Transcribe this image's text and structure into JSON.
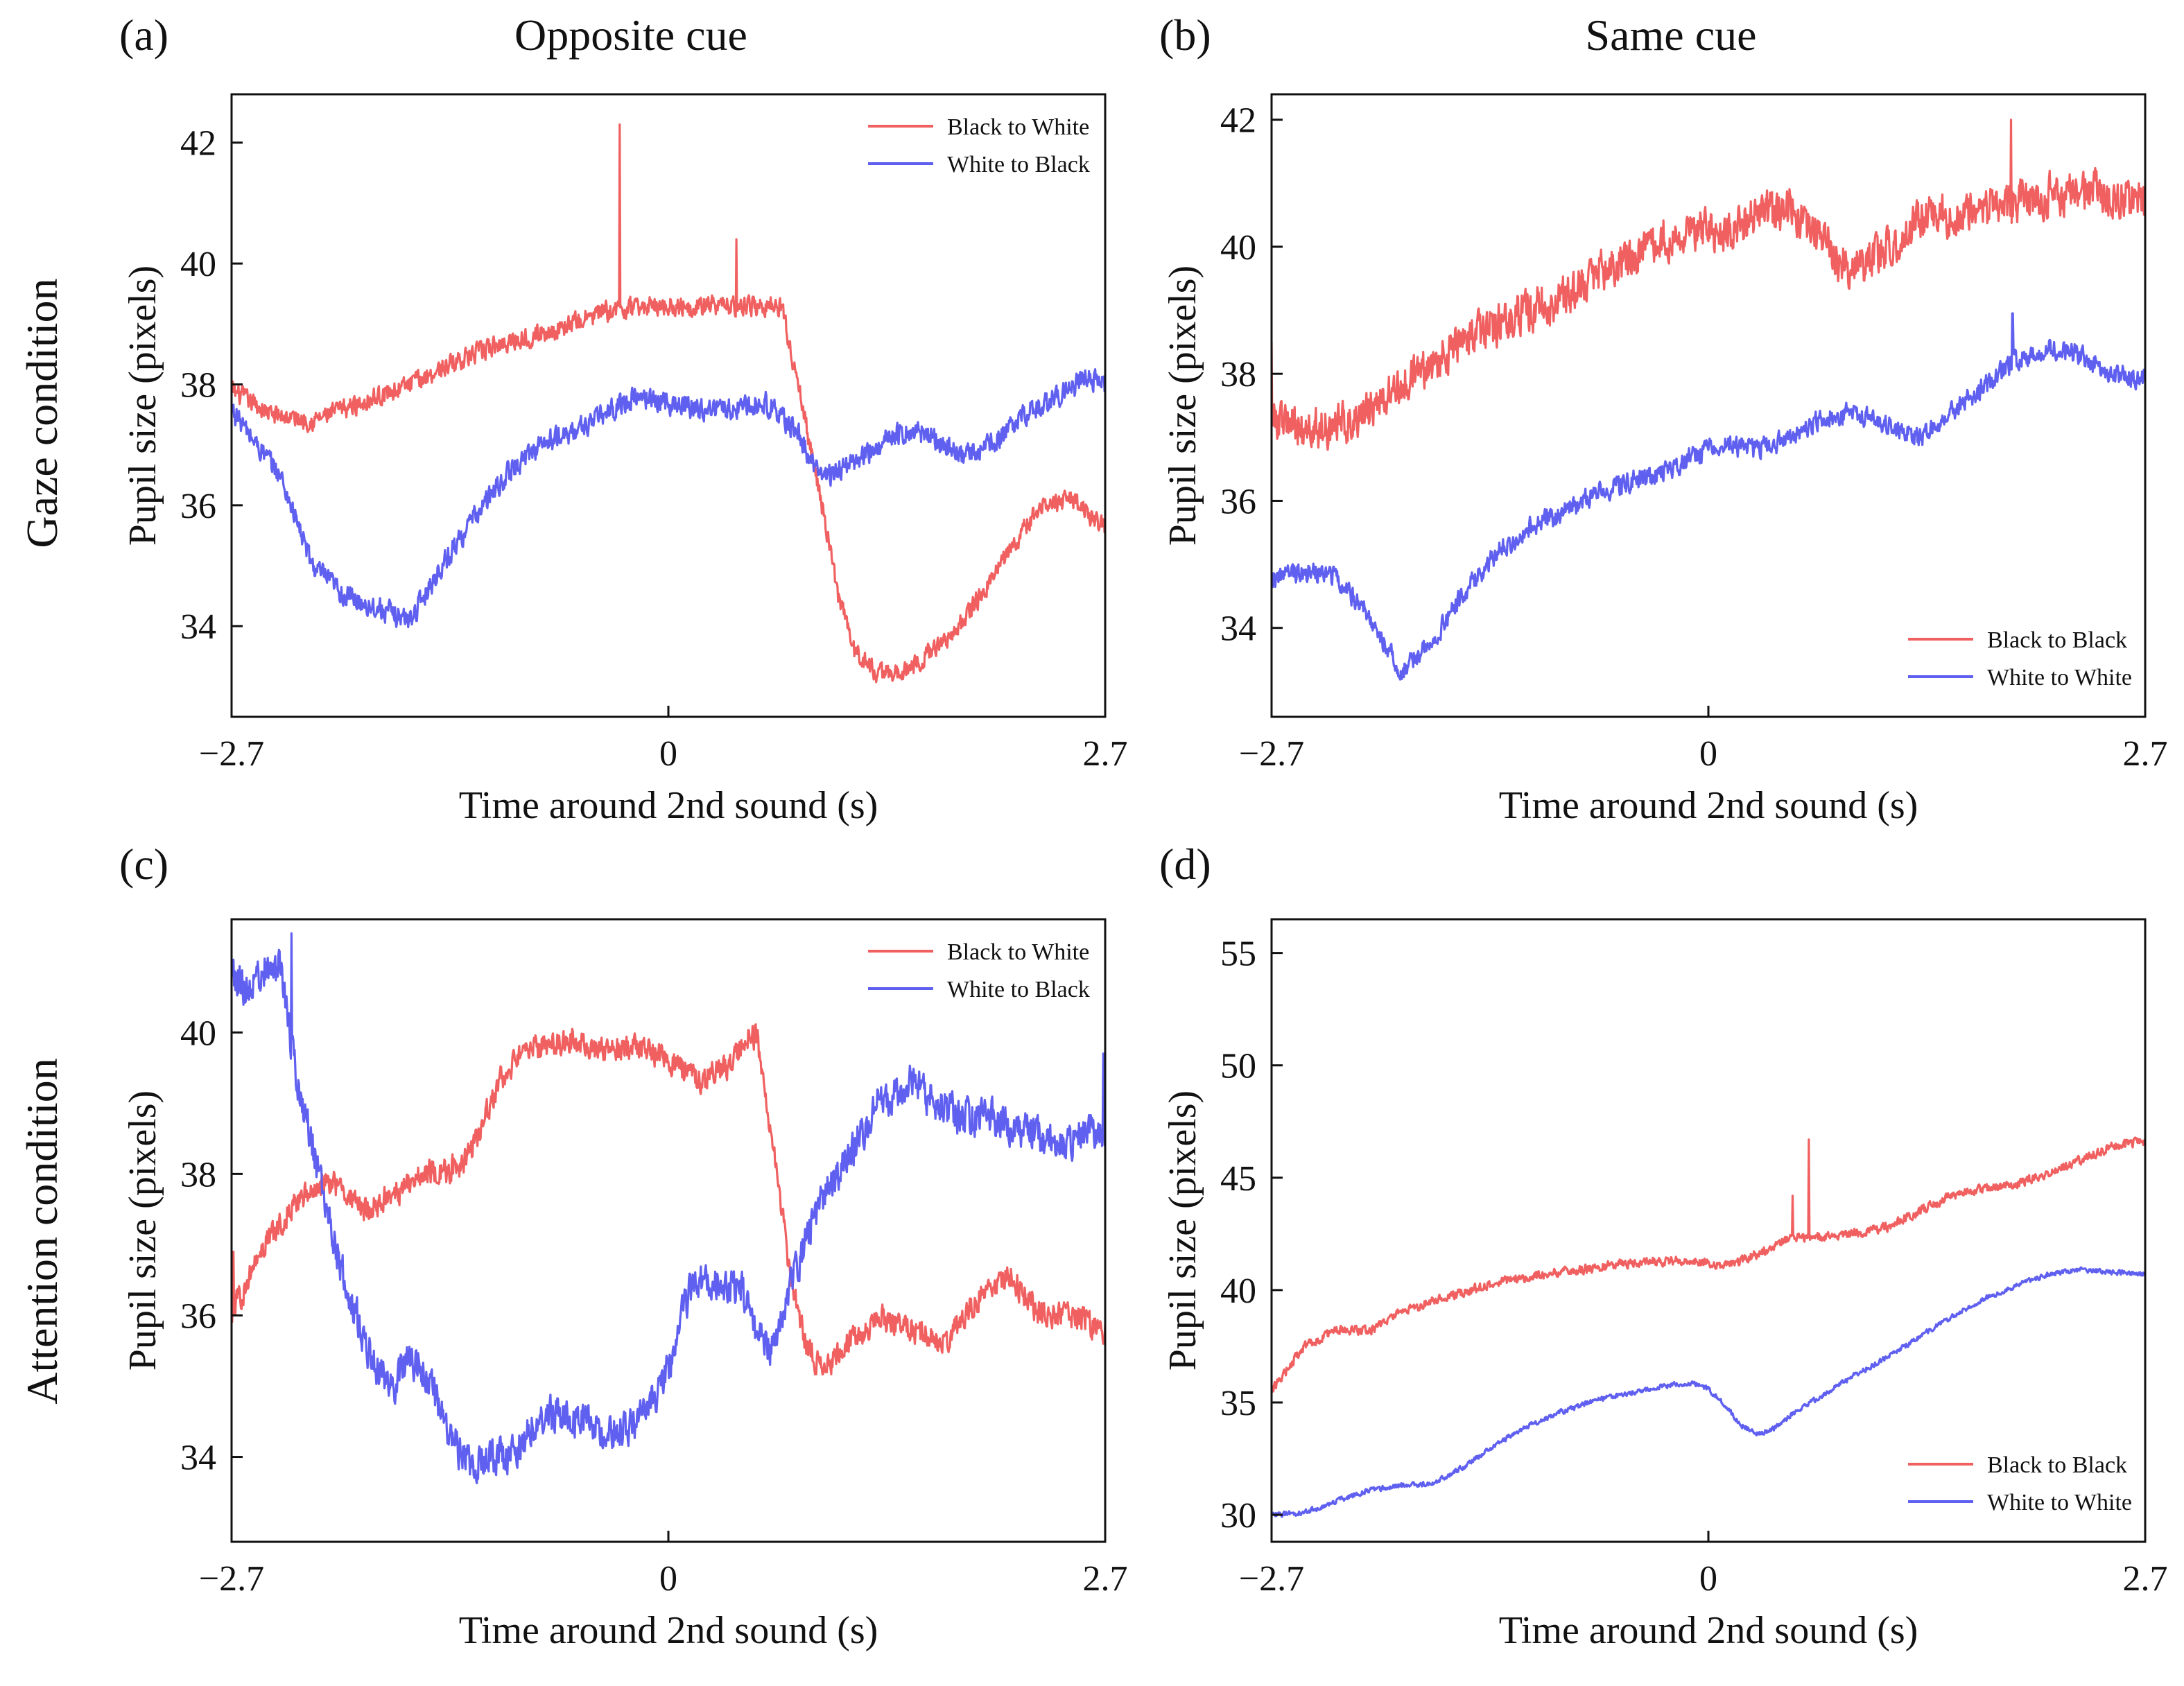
{
  "figure": {
    "col_titles": [
      "Opposite cue",
      "Same cue"
    ],
    "row_titles": [
      "Gaze condition",
      "Attention condition"
    ],
    "panel_labels": [
      "(a)",
      "(b)",
      "(c)",
      "(d)"
    ]
  },
  "colors": {
    "red": "#f06060",
    "blue": "#6060f0"
  },
  "chart_data": [
    {
      "type": "line",
      "label": "(a)",
      "xlabel": "Time around 2nd sound (s)",
      "ylabel": "Pupil size (pixels)",
      "xlim": [
        -2.7,
        2.7
      ],
      "ylim": [
        32.5,
        42.8
      ],
      "xticks": [
        -2.7,
        0,
        2.7
      ],
      "xtick_labels": [
        "−2.7",
        "0",
        "2.7"
      ],
      "yticks": [
        34,
        36,
        38,
        40,
        42
      ],
      "legend_position": "top-right",
      "series": [
        {
          "name": "Black to White",
          "color": "#f06060",
          "noise": 0.22,
          "x": [
            -2.7,
            -2.45,
            -2.2,
            -1.9,
            -1.6,
            -1.3,
            -1.0,
            -0.7,
            -0.4,
            -0.1,
            0.2,
            0.45,
            0.7,
            0.8,
            0.95,
            1.05,
            1.15,
            1.3,
            1.5,
            1.8,
            2.1,
            2.3,
            2.5,
            2.7
          ],
          "y": [
            37.9,
            37.5,
            37.4,
            37.7,
            38.0,
            38.4,
            38.7,
            38.9,
            39.2,
            39.3,
            39.3,
            39.3,
            39.3,
            38.0,
            36.0,
            34.5,
            33.6,
            33.2,
            33.3,
            34.0,
            35.2,
            36.0,
            36.1,
            35.6
          ],
          "spikes": [
            [
              -0.3,
              42.3
            ],
            [
              0.42,
              40.4
            ]
          ]
        },
        {
          "name": "White to Black",
          "color": "#6060f0",
          "noise": 0.25,
          "x": [
            -2.7,
            -2.6,
            -2.4,
            -2.2,
            -2.0,
            -1.8,
            -1.6,
            -1.4,
            -1.2,
            -1.0,
            -0.8,
            -0.6,
            -0.4,
            -0.2,
            0.0,
            0.2,
            0.4,
            0.6,
            0.8,
            0.9,
            1.0,
            1.2,
            1.4,
            1.6,
            1.8,
            2.0,
            2.2,
            2.4,
            2.6,
            2.7
          ],
          "y": [
            37.6,
            37.2,
            36.5,
            35.0,
            34.5,
            34.3,
            34.1,
            35.0,
            35.8,
            36.5,
            37.0,
            37.2,
            37.5,
            37.8,
            37.7,
            37.6,
            37.6,
            37.7,
            37.2,
            36.6,
            36.5,
            36.8,
            37.2,
            37.2,
            36.8,
            37.0,
            37.5,
            37.8,
            38.1,
            38.0
          ],
          "spikes": []
        }
      ]
    },
    {
      "type": "line",
      "label": "(b)",
      "xlabel": "Time around 2nd sound (s)",
      "ylabel": "Pupil size (pixels)",
      "xlim": [
        -2.7,
        2.7
      ],
      "ylim": [
        32.6,
        42.4
      ],
      "xticks": [
        -2.7,
        0,
        2.7
      ],
      "xtick_labels": [
        "−2.7",
        "0",
        "2.7"
      ],
      "yticks": [
        34,
        36,
        38,
        40,
        42
      ],
      "legend_position": "bottom-right",
      "series": [
        {
          "name": "Black to Black",
          "color": "#f06060",
          "noise": 0.45,
          "x": [
            -2.7,
            -2.5,
            -2.3,
            -2.1,
            -1.9,
            -1.7,
            -1.5,
            -1.3,
            -1.1,
            -0.9,
            -0.7,
            -0.5,
            -0.3,
            -0.1,
            0.1,
            0.3,
            0.5,
            0.7,
            0.8,
            0.9,
            1.1,
            1.3,
            1.5,
            1.7,
            1.9,
            2.1,
            2.3,
            2.5,
            2.7
          ],
          "y": [
            37.3,
            37.1,
            37.2,
            37.4,
            37.8,
            38.2,
            38.5,
            38.8,
            39.0,
            39.2,
            39.6,
            39.8,
            40.1,
            40.3,
            40.2,
            40.5,
            40.6,
            40.2,
            39.8,
            39.6,
            40.0,
            40.4,
            40.5,
            40.6,
            40.7,
            40.8,
            40.9,
            40.8,
            40.7
          ],
          "spikes": [
            [
              -2.7,
              38.5
            ],
            [
              1.87,
              42.0
            ]
          ]
        },
        {
          "name": "White to White",
          "color": "#6060f0",
          "noise": 0.22,
          "x": [
            -2.7,
            -2.5,
            -2.3,
            -2.1,
            -1.9,
            -1.7,
            -1.5,
            -1.3,
            -1.1,
            -0.9,
            -0.7,
            -0.5,
            -0.3,
            -0.1,
            0.1,
            0.3,
            0.5,
            0.7,
            0.9,
            1.1,
            1.3,
            1.5,
            1.7,
            1.9,
            2.1,
            2.3,
            2.5,
            2.7
          ],
          "y": [
            34.8,
            34.9,
            34.8,
            34.2,
            33.3,
            33.8,
            34.6,
            35.2,
            35.6,
            35.8,
            36.1,
            36.3,
            36.4,
            36.7,
            36.9,
            36.8,
            37.0,
            37.3,
            37.4,
            37.2,
            37.0,
            37.4,
            37.8,
            38.2,
            38.4,
            38.3,
            38.0,
            37.9
          ],
          "spikes": [
            [
              1.88,
              38.95
            ]
          ]
        }
      ]
    },
    {
      "type": "line",
      "label": "(c)",
      "xlabel": "Time around 2nd sound (s)",
      "ylabel": "Pupil size (pixels)",
      "xlim": [
        -2.7,
        2.7
      ],
      "ylim": [
        32.8,
        41.6
      ],
      "xticks": [
        -2.7,
        0,
        2.7
      ],
      "xtick_labels": [
        "−2.7",
        "0",
        "2.7"
      ],
      "yticks": [
        34,
        36,
        38,
        40
      ],
      "legend_position": "top-right",
      "series": [
        {
          "name": "Black to White",
          "color": "#f06060",
          "noise": 0.25,
          "x": [
            -2.7,
            -2.5,
            -2.3,
            -2.1,
            -1.9,
            -1.7,
            -1.5,
            -1.3,
            -1.2,
            -1.1,
            -1.0,
            -0.8,
            -0.6,
            -0.4,
            -0.2,
            0.0,
            0.2,
            0.4,
            0.5,
            0.55,
            0.65,
            0.75,
            0.85,
            0.95,
            1.1,
            1.3,
            1.5,
            1.7,
            1.9,
            2.1,
            2.3,
            2.5,
            2.7
          ],
          "y": [
            36.0,
            37.0,
            37.6,
            37.9,
            37.5,
            37.7,
            38.0,
            38.1,
            38.4,
            39.0,
            39.5,
            39.8,
            39.9,
            39.7,
            39.8,
            39.6,
            39.3,
            39.6,
            40.0,
            39.9,
            38.4,
            36.6,
            35.6,
            35.2,
            35.6,
            36.0,
            35.8,
            35.6,
            36.2,
            36.6,
            36.0,
            36.0,
            35.8
          ],
          "spikes": [
            [
              -2.69,
              36.9
            ]
          ]
        },
        {
          "name": "White to Black",
          "color": "#6060f0",
          "noise": 0.35,
          "x": [
            -2.7,
            -2.6,
            -2.5,
            -2.4,
            -2.3,
            -2.2,
            -2.1,
            -2.0,
            -1.9,
            -1.8,
            -1.7,
            -1.6,
            -1.5,
            -1.4,
            -1.3,
            -1.2,
            -1.1,
            -1.0,
            -0.9,
            -0.8,
            -0.6,
            -0.4,
            -0.2,
            0.0,
            0.1,
            0.2,
            0.3,
            0.45,
            0.55,
            0.65,
            0.75,
            0.9,
            1.1,
            1.3,
            1.5,
            1.65,
            1.8,
            2.0,
            2.2,
            2.4,
            2.6,
            2.7
          ],
          "y": [
            40.8,
            40.6,
            40.9,
            40.9,
            39.4,
            38.4,
            37.3,
            36.5,
            35.8,
            35.2,
            35.0,
            35.4,
            35.2,
            34.6,
            34.1,
            33.9,
            34.0,
            34.0,
            34.2,
            34.6,
            34.6,
            34.3,
            34.5,
            35.2,
            36.2,
            36.5,
            36.5,
            36.4,
            35.7,
            35.5,
            36.4,
            37.4,
            38.2,
            39.0,
            39.3,
            39.0,
            38.8,
            38.8,
            38.6,
            38.4,
            38.6,
            38.6
          ],
          "spikes": [
            [
              -2.33,
              41.4
            ],
            [
              2.69,
              39.7
            ]
          ]
        }
      ]
    },
    {
      "type": "line",
      "label": "(d)",
      "xlabel": "Time around 2nd sound (s)",
      "ylabel": "Pupil size (pixels)",
      "xlim": [
        -2.7,
        2.7
      ],
      "ylim": [
        28.8,
        56.5
      ],
      "xticks": [
        -2.7,
        0,
        2.7
      ],
      "xtick_labels": [
        "−2.7",
        "0",
        "2.7"
      ],
      "yticks": [
        30,
        35,
        40,
        45,
        50,
        55
      ],
      "legend_position": "bottom-right",
      "series": [
        {
          "name": "Black to Black",
          "color": "#f06060",
          "noise": 0.28,
          "x": [
            -2.7,
            -2.5,
            -2.3,
            -2.1,
            -1.9,
            -1.7,
            -1.5,
            -1.3,
            -1.1,
            -0.9,
            -0.7,
            -0.5,
            -0.3,
            -0.1,
            0.1,
            0.3,
            0.5,
            0.7,
            0.9,
            1.1,
            1.3,
            1.5,
            1.7,
            1.9,
            2.1,
            2.3,
            2.5,
            2.7
          ],
          "y": [
            35.5,
            37.5,
            38.2,
            38.2,
            39.0,
            39.5,
            39.9,
            40.4,
            40.6,
            40.8,
            41.0,
            41.2,
            41.3,
            41.3,
            41.1,
            41.6,
            42.3,
            42.4,
            42.5,
            42.8,
            43.5,
            44.2,
            44.5,
            44.7,
            45.2,
            45.8,
            46.4,
            46.6
          ],
          "spikes": [
            [
              0.52,
              44.2
            ],
            [
              0.62,
              46.7
            ]
          ]
        },
        {
          "name": "White to White",
          "color": "#6060f0",
          "noise": 0.15,
          "x": [
            -2.7,
            -2.5,
            -2.3,
            -2.1,
            -1.9,
            -1.7,
            -1.5,
            -1.3,
            -1.1,
            -0.9,
            -0.7,
            -0.5,
            -0.3,
            -0.1,
            0.0,
            0.1,
            0.2,
            0.3,
            0.4,
            0.5,
            0.7,
            0.9,
            1.1,
            1.3,
            1.5,
            1.7,
            1.9,
            2.1,
            2.3,
            2.5,
            2.7
          ],
          "y": [
            30.0,
            30.1,
            30.6,
            31.1,
            31.3,
            31.4,
            32.2,
            33.2,
            34.0,
            34.6,
            35.1,
            35.4,
            35.7,
            35.9,
            35.6,
            34.9,
            34.0,
            33.6,
            33.8,
            34.4,
            35.3,
            36.2,
            37.0,
            37.9,
            38.8,
            39.6,
            40.2,
            40.7,
            40.9,
            40.8,
            40.7
          ],
          "spikes": []
        }
      ]
    }
  ]
}
